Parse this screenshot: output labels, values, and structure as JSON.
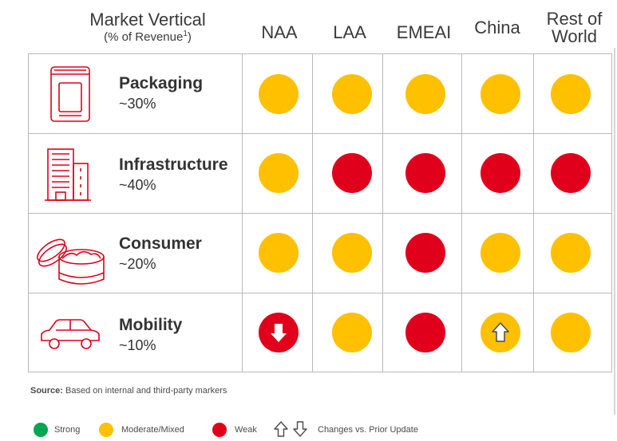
{
  "header": {
    "market_vertical": "Market Vertical",
    "revenue_prefix": "(% of Revenue",
    "revenue_sup": "1",
    "revenue_suffix": ")",
    "regions": [
      "NAA",
      "LAA",
      "EMEAI",
      "China",
      "Rest of",
      "World"
    ]
  },
  "rows": [
    {
      "name": "Packaging",
      "pct": "~30%",
      "icon": "packaging-pouch-icon",
      "ratings": [
        "moderate",
        "moderate",
        "moderate",
        "moderate",
        "moderate"
      ]
    },
    {
      "name": "Infrastructure",
      "pct": "~40%",
      "icon": "building-icon",
      "ratings": [
        "moderate",
        "weak",
        "weak",
        "weak",
        "weak"
      ]
    },
    {
      "name": "Consumer",
      "pct": "~20%",
      "icon": "cosmetic-jar-icon",
      "ratings": [
        "moderate",
        "moderate",
        "weak",
        "moderate",
        "moderate"
      ]
    },
    {
      "name": "Mobility",
      "pct": "~10%",
      "icon": "car-icon",
      "ratings": [
        "weak-down",
        "moderate",
        "weak",
        "moderate-up",
        "moderate"
      ]
    }
  ],
  "source": {
    "label": "Source:",
    "text": " Based on internal and third-party markers"
  },
  "legend": {
    "strong": "Strong",
    "moderate": "Moderate/Mixed",
    "weak": "Weak",
    "changes": "Changes vs. Prior Update"
  },
  "colors": {
    "strong": "#00A651",
    "moderate": "#FFC000",
    "weak": "#E0001B",
    "icon_red": "#E0001B"
  }
}
